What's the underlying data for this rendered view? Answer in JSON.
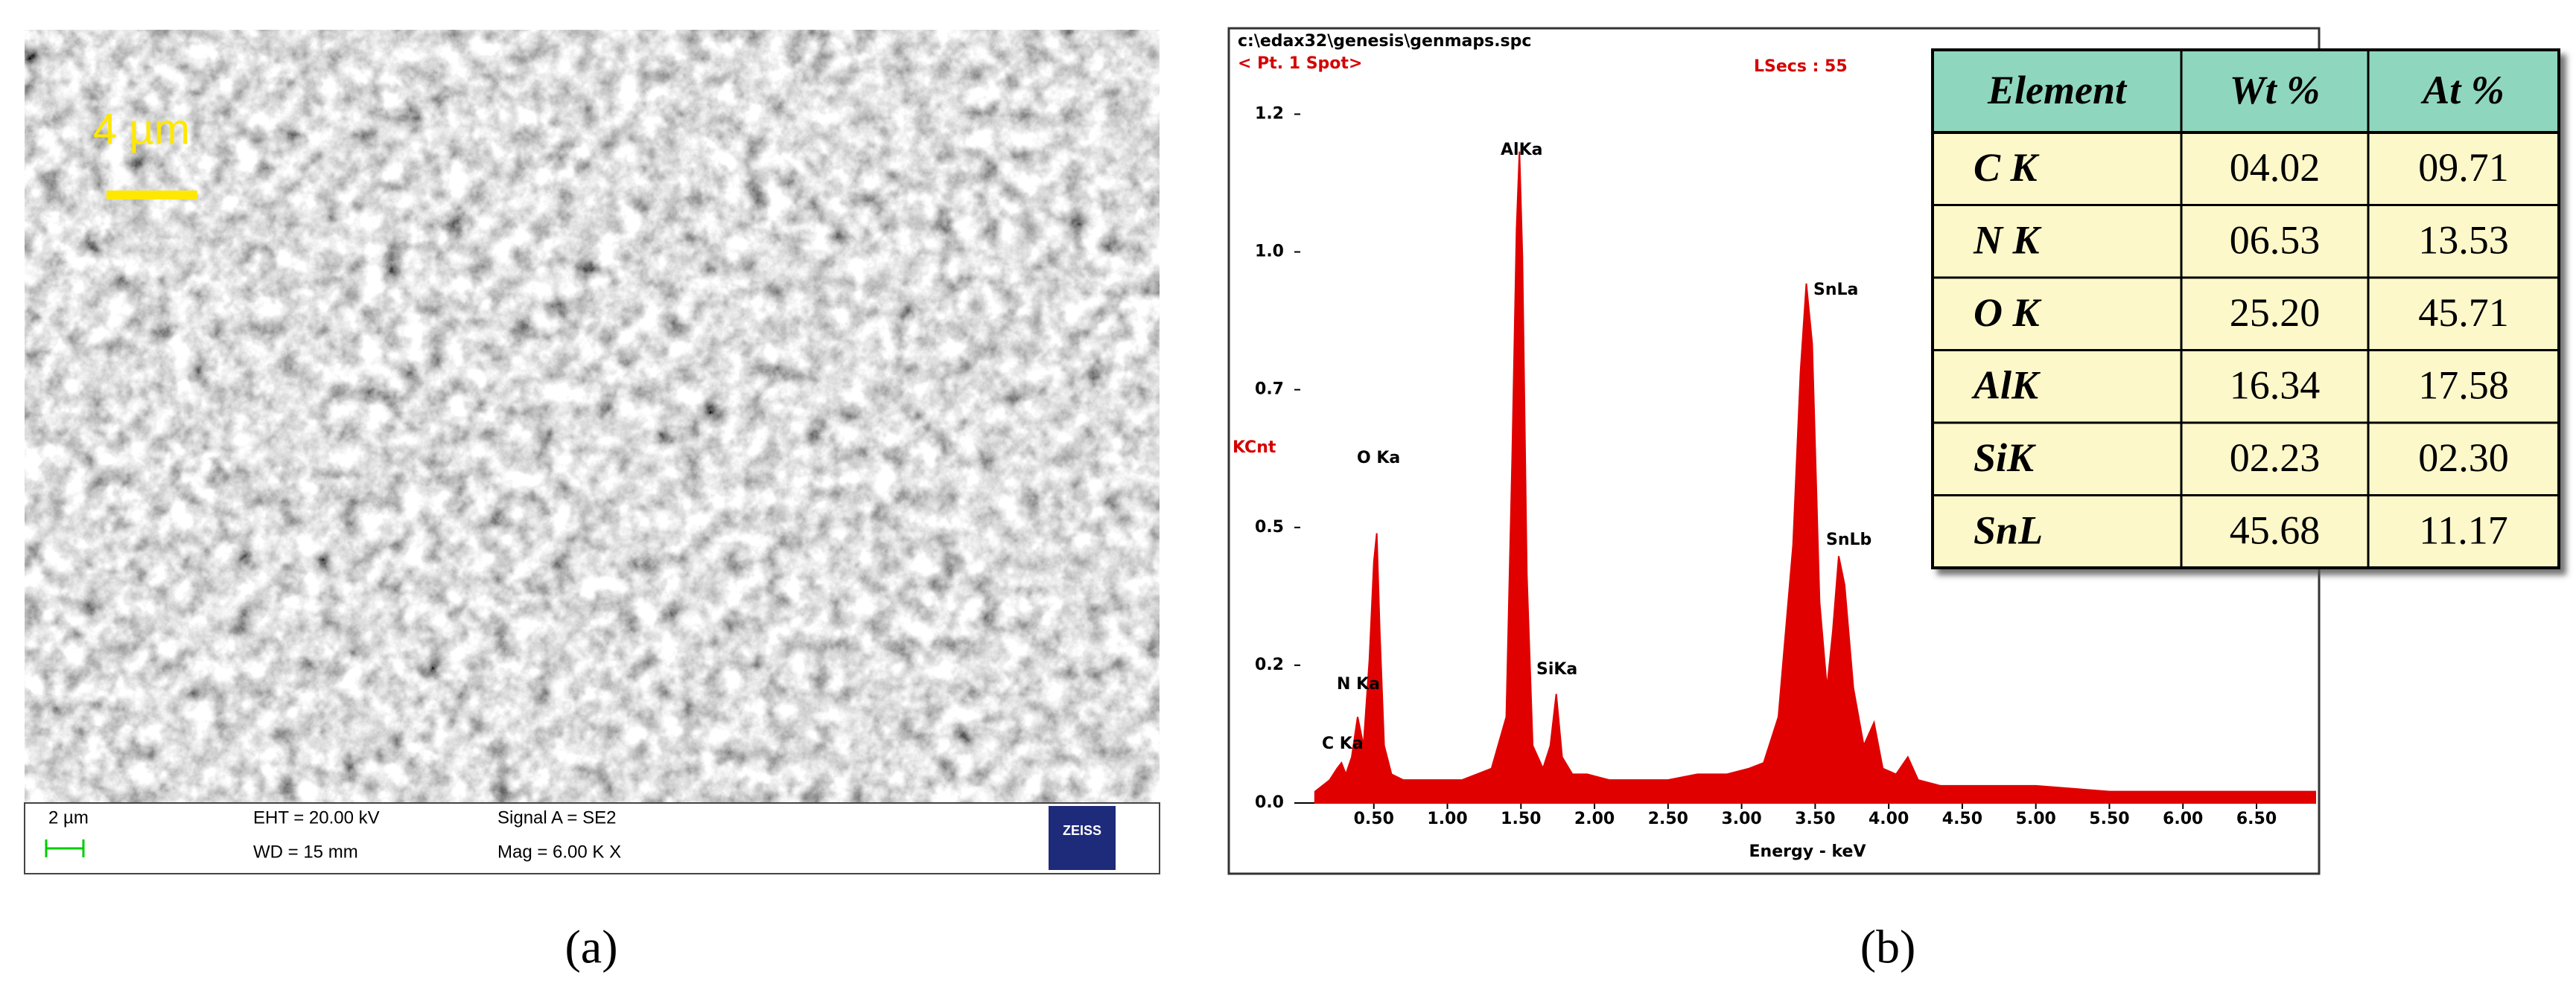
{
  "panel_a": {
    "scale_label": "4 µm",
    "info_bar": {
      "bar_label": "2 µm",
      "eht": "EHT = 20.00 kV",
      "wd": "WD =  15 mm",
      "signal": "Signal A = SE2",
      "mag": "Mag =   6.00 K X",
      "logo": "ZEISS"
    },
    "caption": "(a)"
  },
  "chart_data": {
    "type": "area",
    "color": "#e00000",
    "file": "c:\\edax32\\genesis\\genmaps.spc",
    "spot": "< Pt. 1 Spot>",
    "lsecs": "LSecs : 55",
    "ylabel": "KCnt",
    "xlabel": "Energy - keV",
    "x": [
      0.1,
      0.2,
      0.25,
      0.28,
      0.31,
      0.35,
      0.39,
      0.43,
      0.47,
      0.5,
      0.52,
      0.54,
      0.57,
      0.62,
      0.7,
      0.8,
      0.9,
      1.0,
      1.1,
      1.2,
      1.3,
      1.4,
      1.44,
      1.47,
      1.49,
      1.51,
      1.54,
      1.58,
      1.65,
      1.7,
      1.74,
      1.78,
      1.85,
      1.95,
      2.1,
      2.3,
      2.5,
      2.7,
      2.9,
      3.05,
      3.15,
      3.25,
      3.35,
      3.4,
      3.44,
      3.48,
      3.53,
      3.58,
      3.62,
      3.66,
      3.7,
      3.76,
      3.83,
      3.9,
      3.96,
      4.05,
      4.13,
      4.2,
      4.35,
      4.6,
      5.0,
      5.5,
      6.0,
      6.5,
      6.9
    ],
    "values": [
      0.02,
      0.04,
      0.06,
      0.07,
      0.05,
      0.08,
      0.15,
      0.1,
      0.25,
      0.42,
      0.47,
      0.3,
      0.1,
      0.05,
      0.04,
      0.04,
      0.04,
      0.04,
      0.04,
      0.05,
      0.06,
      0.15,
      0.6,
      1.0,
      1.135,
      0.95,
      0.4,
      0.1,
      0.06,
      0.1,
      0.19,
      0.08,
      0.05,
      0.05,
      0.04,
      0.04,
      0.04,
      0.05,
      0.05,
      0.06,
      0.07,
      0.15,
      0.45,
      0.75,
      0.905,
      0.8,
      0.35,
      0.2,
      0.3,
      0.43,
      0.38,
      0.2,
      0.1,
      0.14,
      0.06,
      0.05,
      0.08,
      0.04,
      0.03,
      0.03,
      0.03,
      0.02,
      0.02,
      0.02,
      0.02
    ],
    "xlim": [
      0,
      6.9
    ],
    "ylim": [
      0,
      1.22
    ],
    "xticks": [
      {
        "value": 0.5,
        "label": "0.50"
      },
      {
        "value": 1,
        "label": "1.00"
      },
      {
        "value": 1.5,
        "label": "1.50"
      },
      {
        "value": 2,
        "label": "2.00"
      },
      {
        "value": 2.5,
        "label": "2.50"
      },
      {
        "value": 3,
        "label": "3.00"
      },
      {
        "value": 3.5,
        "label": "3.50"
      },
      {
        "value": 4,
        "label": "4.00"
      },
      {
        "value": 4.5,
        "label": "4.50"
      },
      {
        "value": 5,
        "label": "5.00"
      },
      {
        "value": 5.5,
        "label": "5.50"
      },
      {
        "value": 6,
        "label": "6.00"
      },
      {
        "value": 6.5,
        "label": "6.50"
      }
    ],
    "yticks": [
      {
        "value": 0,
        "label": "0.0"
      },
      {
        "value": 0.24,
        "label": "0.2"
      },
      {
        "value": 0.48,
        "label": "0.5"
      },
      {
        "value": 0.72,
        "label": "0.7"
      },
      {
        "value": 0.96,
        "label": "1.0"
      },
      {
        "value": 1.2,
        "label": "1.2"
      }
    ],
    "annotations": [
      "C Ka",
      "N Ka",
      "O Ka",
      "AlKa",
      "SiKa",
      "SnLa",
      "SnLb"
    ]
  },
  "table": {
    "header": [
      "Element",
      "Wt %",
      "At %"
    ],
    "rows": [
      [
        "C K",
        "04.02",
        "09.71"
      ],
      [
        "N K",
        "06.53",
        "13.53"
      ],
      [
        "O K",
        "25.20",
        "45.71"
      ],
      [
        "AlK",
        "16.34",
        "17.58"
      ],
      [
        "SiK",
        "02.23",
        "02.30"
      ],
      [
        "SnL",
        "45.68",
        "11.17"
      ]
    ]
  },
  "panel_b": {
    "caption": "(b)"
  }
}
